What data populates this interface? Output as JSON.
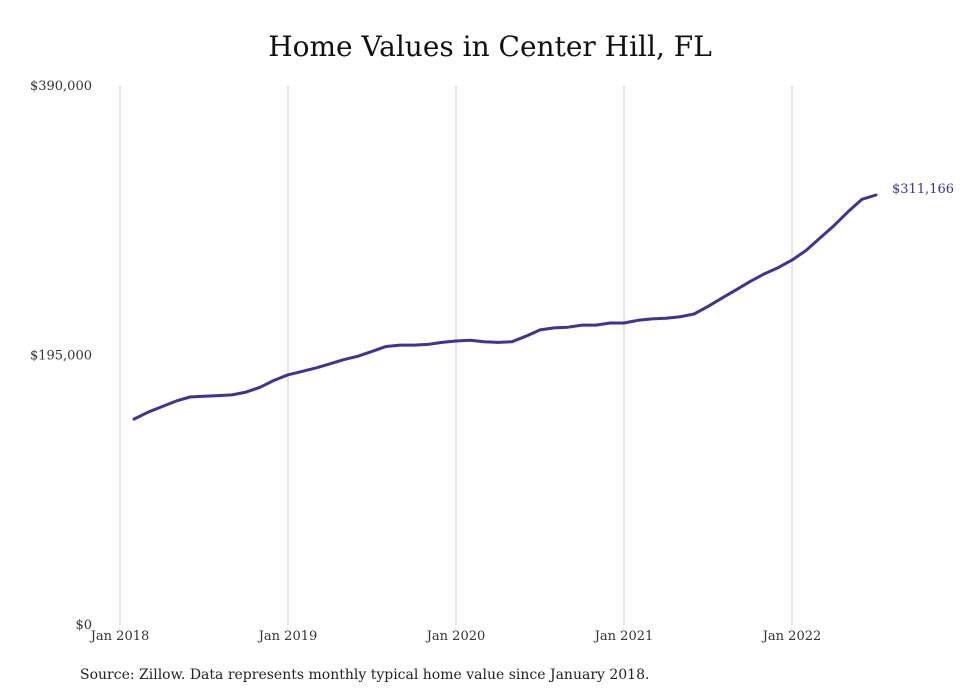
{
  "chart_data": {
    "type": "line",
    "title": "Home Values in Center Hill, FL",
    "source": "Source: Zillow. Data represents monthly typical home value since January 2018.",
    "ylim": [
      0,
      390000
    ],
    "y_ticks": [
      "$390,000",
      "$195,000",
      "$0"
    ],
    "y_tick_values": [
      390000,
      195000,
      0
    ],
    "x_ticks": [
      "Jan 2018",
      "Jan 2019",
      "Jan 2020",
      "Jan 2021",
      "Jan 2022"
    ],
    "x_tick_dates": [
      "2018-01",
      "2019-01",
      "2020-01",
      "2021-01",
      "2022-01"
    ],
    "grid_vertical": true,
    "line_color": "#3d3591",
    "end_label": "$311,166",
    "series": [
      {
        "x": [
          "2018-02",
          "2018-03",
          "2018-04",
          "2018-05",
          "2018-06",
          "2018-07",
          "2018-08",
          "2018-09",
          "2018-10",
          "2018-11",
          "2018-12",
          "2019-01",
          "2019-02",
          "2019-03",
          "2019-04",
          "2019-05",
          "2019-06",
          "2019-07",
          "2019-08",
          "2019-09",
          "2019-10",
          "2019-11",
          "2019-12",
          "2020-01",
          "2020-02",
          "2020-03",
          "2020-04",
          "2020-05",
          "2020-06",
          "2020-07",
          "2020-08",
          "2020-09",
          "2020-10",
          "2020-11",
          "2020-12",
          "2021-01",
          "2021-02",
          "2021-03",
          "2021-04",
          "2021-05",
          "2021-06",
          "2021-07",
          "2021-08",
          "2021-09",
          "2021-10",
          "2021-11",
          "2021-12",
          "2022-01",
          "2022-02",
          "2022-03",
          "2022-04",
          "2022-05",
          "2022-06",
          "2022-07"
        ],
        "values": [
          149000,
          154000,
          158000,
          162000,
          165000,
          165500,
          166000,
          166500,
          168500,
          172000,
          177000,
          181000,
          183500,
          186000,
          189000,
          192000,
          194500,
          198000,
          201500,
          202500,
          202500,
          203000,
          204500,
          205500,
          206000,
          205000,
          204500,
          205000,
          209000,
          213500,
          215000,
          215500,
          217000,
          217000,
          218500,
          218500,
          220500,
          221500,
          222000,
          223000,
          225000,
          230500,
          236500,
          242500,
          248500,
          254000,
          258500,
          264000,
          271000,
          280000,
          289000,
          299000,
          308000,
          311166
        ]
      }
    ]
  }
}
